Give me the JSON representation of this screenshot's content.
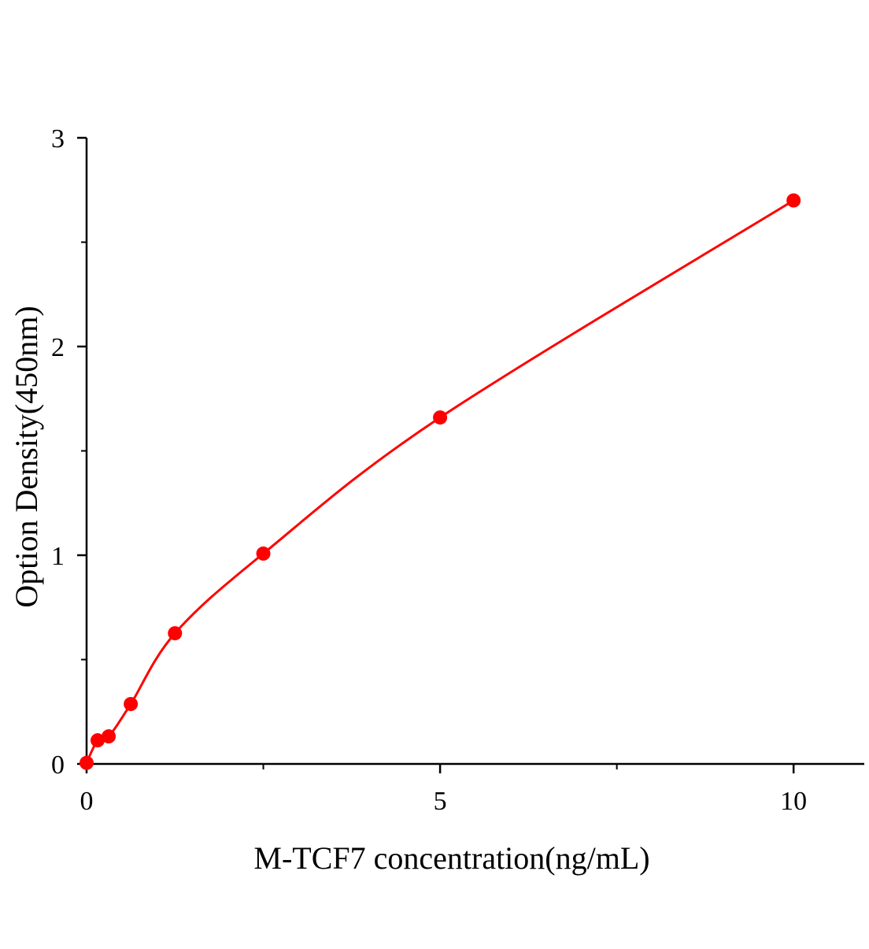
{
  "chart_data": {
    "type": "scatter",
    "title": "",
    "xlabel": "M-TCF7 concentration(ng/mL)",
    "ylabel": "Option Density(450nm)",
    "xlim": [
      0,
      11
    ],
    "ylim": [
      0,
      3
    ],
    "x_ticks": [
      0,
      5,
      10
    ],
    "x_tick_labels": [
      "0",
      "5",
      "10"
    ],
    "x_minor_ticks": [
      2.5,
      7.5
    ],
    "y_ticks": [
      0,
      1,
      2,
      3
    ],
    "y_tick_labels": [
      "0",
      "1",
      "2",
      "3"
    ],
    "y_minor_ticks": [
      0.5,
      1.5,
      2.5
    ],
    "grid": false,
    "legend": "none",
    "series": [
      {
        "x": [
          0,
          0.156,
          0.3125,
          0.625,
          1.25,
          2.5,
          5,
          10
        ],
        "y": [
          0.005,
          0.113,
          0.132,
          0.287,
          0.626,
          1.008,
          1.66,
          2.7
        ],
        "color": "#ff0000",
        "fit_line": true
      }
    ]
  }
}
